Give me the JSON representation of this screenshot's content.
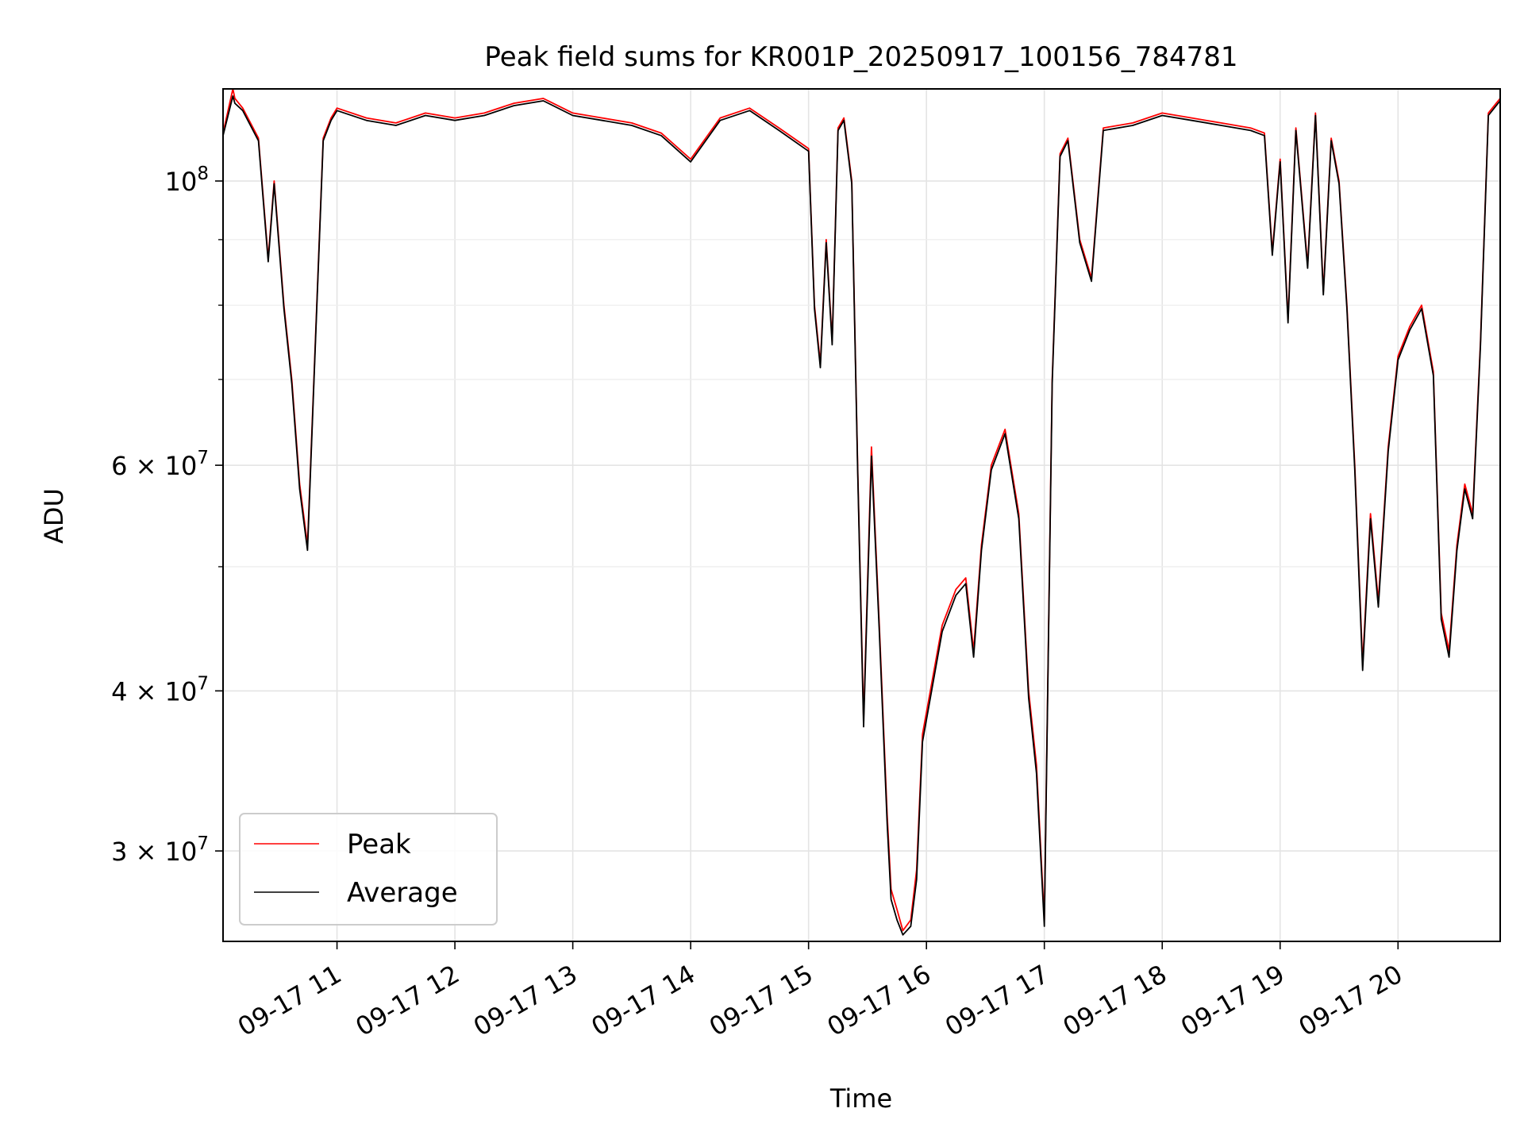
{
  "chart_data": {
    "type": "line",
    "title": "Peak field sums for KR001P_20250917_100156_784781",
    "xlabel": "Time",
    "ylabel": "ADU",
    "yscale": "log",
    "ylim": [
      25500000,
      118000000
    ],
    "xlim": [
      "2025-09-17T10:02",
      "2025-09-17T20:52"
    ],
    "x_ticks": [
      "09-17 11",
      "09-17 12",
      "09-17 13",
      "09-17 14",
      "09-17 15",
      "09-17 16",
      "09-17 17",
      "09-17 18",
      "09-17 19",
      "09-17 20"
    ],
    "y_ticks": [
      {
        "value": 100000000,
        "base": "10",
        "exp": "8"
      },
      {
        "value": 60000000,
        "base": "6 × 10",
        "exp": "7"
      },
      {
        "value": 40000000,
        "base": "4 × 10",
        "exp": "7"
      },
      {
        "value": 30000000,
        "base": "3 × 10",
        "exp": "7"
      }
    ],
    "y_minor_ticks": [
      90000000,
      80000000,
      70000000,
      50000000
    ],
    "grid": true,
    "legend": {
      "position": "lower left",
      "entries": [
        "Peak",
        "Average"
      ]
    },
    "x": [
      "2025-09-17T10:02",
      "2025-09-17T10:07",
      "2025-09-17T10:08",
      "2025-09-17T10:12",
      "2025-09-17T10:20",
      "2025-09-17T10:25",
      "2025-09-17T10:28",
      "2025-09-17T10:33",
      "2025-09-17T10:37",
      "2025-09-17T10:41",
      "2025-09-17T10:45",
      "2025-09-17T10:49",
      "2025-09-17T10:53",
      "2025-09-17T10:57",
      "2025-09-17T11:00",
      "2025-09-17T11:15",
      "2025-09-17T11:30",
      "2025-09-17T11:45",
      "2025-09-17T12:00",
      "2025-09-17T12:15",
      "2025-09-17T12:30",
      "2025-09-17T12:45",
      "2025-09-17T13:00",
      "2025-09-17T13:15",
      "2025-09-17T13:30",
      "2025-09-17T13:45",
      "2025-09-17T14:00",
      "2025-09-17T14:15",
      "2025-09-17T14:30",
      "2025-09-17T14:45",
      "2025-09-17T15:00",
      "2025-09-17T15:03",
      "2025-09-17T15:06",
      "2025-09-17T15:09",
      "2025-09-17T15:12",
      "2025-09-17T15:15",
      "2025-09-17T15:18",
      "2025-09-17T15:22",
      "2025-09-17T15:25",
      "2025-09-17T15:28",
      "2025-09-17T15:32",
      "2025-09-17T15:36",
      "2025-09-17T15:40",
      "2025-09-17T15:42",
      "2025-09-17T15:45",
      "2025-09-17T15:48",
      "2025-09-17T15:52",
      "2025-09-17T15:55",
      "2025-09-17T15:58",
      "2025-09-17T16:02",
      "2025-09-17T16:08",
      "2025-09-17T16:15",
      "2025-09-17T16:20",
      "2025-09-17T16:24",
      "2025-09-17T16:28",
      "2025-09-17T16:33",
      "2025-09-17T16:40",
      "2025-09-17T16:47",
      "2025-09-17T16:52",
      "2025-09-17T16:56",
      "2025-09-17T17:00",
      "2025-09-17T17:04",
      "2025-09-17T17:08",
      "2025-09-17T17:12",
      "2025-09-17T17:18",
      "2025-09-17T17:24",
      "2025-09-17T17:30",
      "2025-09-17T17:45",
      "2025-09-17T18:00",
      "2025-09-17T18:15",
      "2025-09-17T18:30",
      "2025-09-17T18:45",
      "2025-09-17T18:52",
      "2025-09-17T18:56",
      "2025-09-17T19:00",
      "2025-09-17T19:04",
      "2025-09-17T19:08",
      "2025-09-17T19:14",
      "2025-09-17T19:18",
      "2025-09-17T19:22",
      "2025-09-17T19:26",
      "2025-09-17T19:30",
      "2025-09-17T19:34",
      "2025-09-17T19:38",
      "2025-09-17T19:42",
      "2025-09-17T19:46",
      "2025-09-17T19:50",
      "2025-09-17T19:55",
      "2025-09-17T20:00",
      "2025-09-17T20:06",
      "2025-09-17T20:12",
      "2025-09-17T20:18",
      "2025-09-17T20:22",
      "2025-09-17T20:26",
      "2025-09-17T20:30",
      "2025-09-17T20:34",
      "2025-09-17T20:38",
      "2025-09-17T20:42",
      "2025-09-17T20:46",
      "2025-09-17T20:50",
      "2025-09-17T20:52"
    ],
    "series": [
      {
        "name": "Peak",
        "color": "#ff0000",
        "values": [
          109000000,
          118000000,
          116000000,
          114000000,
          108000000,
          87000000,
          100000000,
          80000000,
          70000000,
          58000000,
          52000000,
          75000000,
          108000000,
          112000000,
          114000000,
          112000000,
          111000000,
          113000000,
          112000000,
          113000000,
          115000000,
          116000000,
          113000000,
          112000000,
          111000000,
          109000000,
          104000000,
          112000000,
          114000000,
          110000000,
          106000000,
          80000000,
          72000000,
          90000000,
          75000000,
          110000000,
          112000000,
          100000000,
          60000000,
          38000000,
          62000000,
          45000000,
          32000000,
          28000000,
          27000000,
          26000000,
          26500000,
          29000000,
          37000000,
          40000000,
          45000000,
          48000000,
          49000000,
          43000000,
          52000000,
          60000000,
          64000000,
          55000000,
          40000000,
          35000000,
          26500000,
          70000000,
          105000000,
          108000000,
          90000000,
          84000000,
          110000000,
          111000000,
          113000000,
          112000000,
          111000000,
          110000000,
          109000000,
          88000000,
          104000000,
          78000000,
          110000000,
          86000000,
          113000000,
          82000000,
          108000000,
          100000000,
          80000000,
          60000000,
          42000000,
          55000000,
          47000000,
          62000000,
          73000000,
          77000000,
          80000000,
          71000000,
          46000000,
          43000000,
          52000000,
          58000000,
          55000000,
          75000000,
          113000000,
          115000000,
          116000000
        ]
      },
      {
        "name": "Average",
        "color": "#000000",
        "values": [
          108500000,
          116500000,
          115000000,
          113500000,
          107500000,
          86500000,
          99500000,
          79500000,
          69500000,
          57500000,
          51500000,
          74500000,
          107500000,
          111500000,
          113500000,
          111500000,
          110500000,
          112500000,
          111500000,
          112500000,
          114500000,
          115500000,
          112500000,
          111500000,
          110500000,
          108500000,
          103500000,
          111500000,
          113500000,
          109500000,
          105500000,
          79500000,
          71500000,
          89500000,
          74500000,
          109500000,
          111500000,
          99500000,
          59500000,
          37500000,
          61000000,
          44500000,
          31500000,
          27500000,
          26500000,
          25800000,
          26200000,
          28500000,
          36500000,
          39500000,
          44500000,
          47500000,
          48500000,
          42500000,
          51500000,
          59500000,
          63500000,
          54500000,
          39500000,
          34500000,
          26200000,
          69500000,
          104500000,
          107500000,
          89500000,
          83500000,
          109500000,
          110500000,
          112500000,
          111500000,
          110500000,
          109500000,
          108500000,
          87500000,
          103500000,
          77500000,
          109500000,
          85500000,
          112500000,
          81500000,
          107500000,
          99500000,
          79500000,
          59500000,
          41500000,
          54500000,
          46500000,
          61500000,
          72500000,
          76500000,
          79500000,
          70500000,
          45500000,
          42500000,
          51500000,
          57500000,
          54500000,
          74500000,
          112500000,
          114500000,
          115500000
        ]
      }
    ]
  }
}
